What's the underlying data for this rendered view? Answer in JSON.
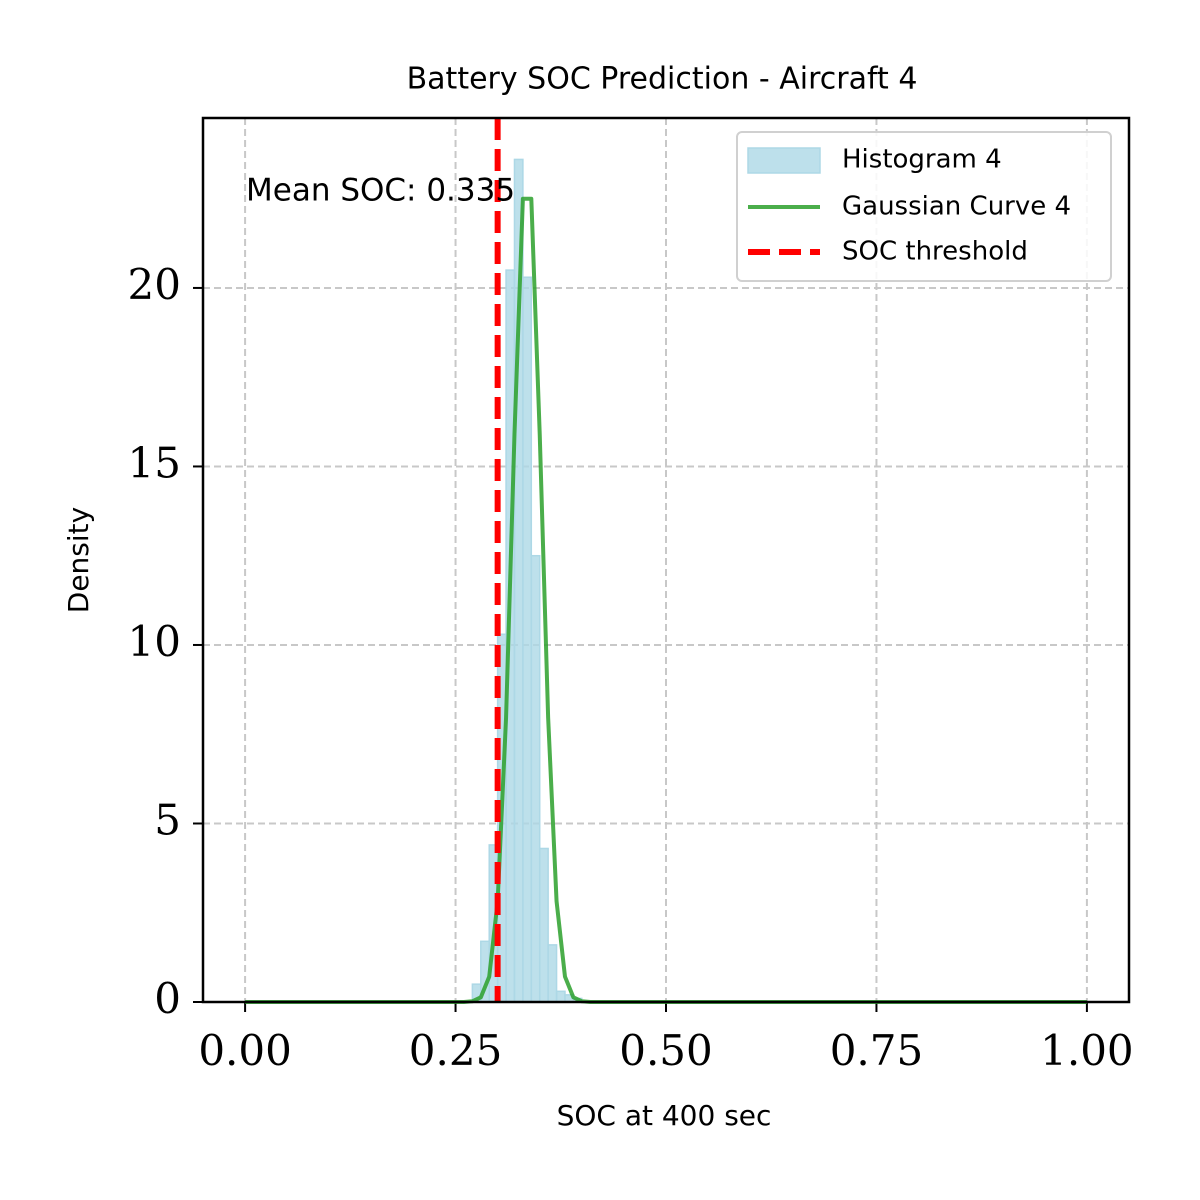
{
  "chart_data": {
    "type": "histogram",
    "title": "Battery SOC Prediction - Aircraft 4",
    "xlabel": "SOC at 400 sec",
    "ylabel": "Density",
    "xlim": [
      -0.05,
      1.05
    ],
    "ylim": [
      0,
      24.76
    ],
    "xticks": [
      {
        "value": 0,
        "label": "0.00"
      },
      {
        "value": 0.25,
        "label": "0.25"
      },
      {
        "value": 0.5,
        "label": "0.50"
      },
      {
        "value": 0.75,
        "label": "0.75"
      },
      {
        "value": 1,
        "label": "1.00"
      }
    ],
    "yticks": [
      0,
      5,
      10,
      15,
      20
    ],
    "grid": true,
    "legend": "upper right",
    "histogram": {
      "name": "Histogram 4",
      "color": "#add8e6",
      "bins": [
        0.27,
        0.28,
        0.29,
        0.3,
        0.31,
        0.32,
        0.33,
        0.34,
        0.35,
        0.36,
        0.37,
        0.38,
        0.39,
        0.4
      ],
      "values": [
        0.5,
        1.7,
        4.4,
        10.3,
        20.5,
        23.6,
        20.3,
        12.5,
        4.3,
        1.6,
        0.3,
        0.2,
        0.1
      ]
    },
    "curve": {
      "name": "Gaussian Curve 4",
      "color": "#2ca02c",
      "x": [
        0,
        0.26,
        0.27,
        0.28,
        0.29,
        0.3,
        0.31,
        0.32,
        0.33,
        0.34,
        0.35,
        0.36,
        0.37,
        0.38,
        0.39,
        0.4,
        0.41,
        1
      ],
      "values": [
        0,
        0,
        0.02,
        0.13,
        0.71,
        2.82,
        7.96,
        15.9,
        22.5,
        22.5,
        15.9,
        7.96,
        2.82,
        0.71,
        0.13,
        0.02,
        0,
        0
      ]
    },
    "threshold": {
      "name": "SOC threshold",
      "color": "#ff0000",
      "value": 0.3
    },
    "annotation": {
      "text": "Mean SOC: 0.335",
      "color": "#0000ff"
    }
  }
}
